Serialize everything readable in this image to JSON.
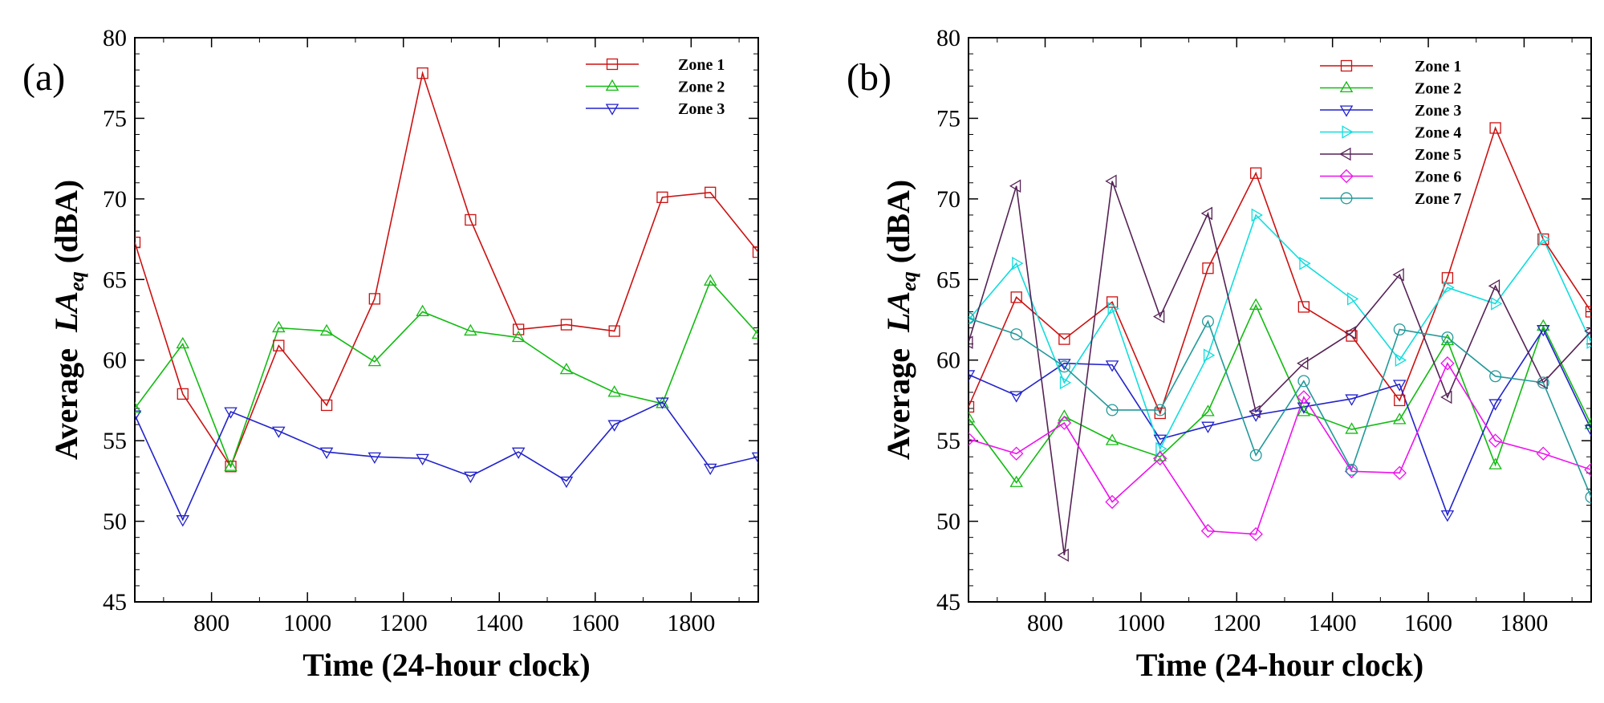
{
  "chart_data": [
    {
      "panel_label": "(a)",
      "type": "line",
      "xlabel": "Time (24-hour clock)",
      "ylabel_prefix": "Average",
      "ylabel_main": "LA",
      "ylabel_sub": "eq",
      "ylabel_suffix": "(dBA)",
      "xlim": [
        640,
        1940
      ],
      "ylim": [
        45,
        80
      ],
      "x_ticks": [
        800,
        1000,
        1200,
        1400,
        1600,
        1800
      ],
      "y_ticks": [
        45,
        50,
        55,
        60,
        65,
        70,
        75,
        80
      ],
      "legend_position": "top-right",
      "x": [
        640,
        740,
        840,
        940,
        1040,
        1140,
        1240,
        1340,
        1440,
        1540,
        1640,
        1740,
        1840,
        1940
      ],
      "series": [
        {
          "name": "Zone 1",
          "color": "#cc1111",
          "marker": "square",
          "values": [
            67.3,
            57.9,
            53.4,
            60.9,
            57.2,
            63.8,
            77.8,
            68.7,
            61.9,
            62.2,
            61.8,
            70.1,
            70.4,
            66.7
          ]
        },
        {
          "name": "Zone 2",
          "color": "#11bb11",
          "marker": "triangle-up",
          "values": [
            57.0,
            61.0,
            53.4,
            62.0,
            61.8,
            59.9,
            63.0,
            61.8,
            61.4,
            59.4,
            58.0,
            57.3,
            64.9,
            61.6
          ]
        },
        {
          "name": "Zone 3",
          "color": "#2222cc",
          "marker": "triangle-down",
          "values": [
            56.6,
            50.1,
            56.8,
            55.6,
            54.3,
            54.0,
            53.9,
            52.8,
            54.3,
            52.5,
            56.0,
            57.4,
            53.3,
            54.0
          ]
        }
      ]
    },
    {
      "panel_label": "(b)",
      "type": "line",
      "xlabel": "Time (24-hour clock)",
      "ylabel_prefix": "Average",
      "ylabel_main": "LA",
      "ylabel_sub": "eq",
      "ylabel_suffix": "(dBA)",
      "xlim": [
        640,
        1940
      ],
      "ylim": [
        45,
        80
      ],
      "x_ticks": [
        800,
        1000,
        1200,
        1400,
        1600,
        1800
      ],
      "y_ticks": [
        45,
        50,
        55,
        60,
        65,
        70,
        75,
        80
      ],
      "legend_position": "top-right",
      "x": [
        640,
        740,
        840,
        940,
        1040,
        1140,
        1240,
        1340,
        1440,
        1540,
        1640,
        1740,
        1840,
        1940
      ],
      "series": [
        {
          "name": "Zone 1",
          "color": "#cc1111",
          "marker": "square",
          "values": [
            57.1,
            63.9,
            61.3,
            63.6,
            56.7,
            65.7,
            71.6,
            63.3,
            61.5,
            57.5,
            65.1,
            74.4,
            67.5,
            63.0
          ]
        },
        {
          "name": "Zone 2",
          "color": "#11bb11",
          "marker": "triangle-up",
          "values": [
            56.4,
            52.4,
            56.5,
            55.0,
            54.0,
            56.8,
            63.4,
            56.8,
            55.7,
            56.3,
            61.2,
            53.5,
            62.1,
            56.0
          ]
        },
        {
          "name": "Zone 3",
          "color": "#2222cc",
          "marker": "triangle-down",
          "values": [
            59.1,
            57.8,
            59.8,
            59.7,
            55.1,
            55.9,
            56.6,
            57.1,
            57.6,
            58.5,
            50.4,
            57.3,
            61.9,
            55.7
          ]
        },
        {
          "name": "Zone 4",
          "color": "#11dddd",
          "marker": "triangle-right",
          "values": [
            62.5,
            66.0,
            58.6,
            63.2,
            54.5,
            60.3,
            69.0,
            66.0,
            63.8,
            60.0,
            64.5,
            63.5,
            67.5,
            61.1
          ]
        },
        {
          "name": "Zone 5",
          "color": "#552255",
          "marker": "triangle-left",
          "values": [
            61.1,
            70.8,
            47.9,
            71.1,
            62.7,
            69.1,
            56.8,
            59.8,
            61.7,
            65.3,
            57.7,
            64.6,
            58.6,
            61.8
          ]
        },
        {
          "name": "Zone 6",
          "color": "#ee11ee",
          "marker": "diamond",
          "values": [
            55.1,
            54.2,
            56.1,
            51.2,
            53.9,
            49.4,
            49.2,
            57.7,
            53.1,
            53.0,
            59.8,
            55.0,
            54.2,
            53.2
          ]
        },
        {
          "name": "Zone 7",
          "color": "#229999",
          "marker": "circle",
          "values": [
            62.6,
            61.6,
            59.6,
            56.9,
            56.9,
            62.4,
            54.1,
            58.7,
            53.2,
            61.9,
            61.4,
            59.0,
            58.6,
            51.5
          ]
        }
      ]
    }
  ]
}
